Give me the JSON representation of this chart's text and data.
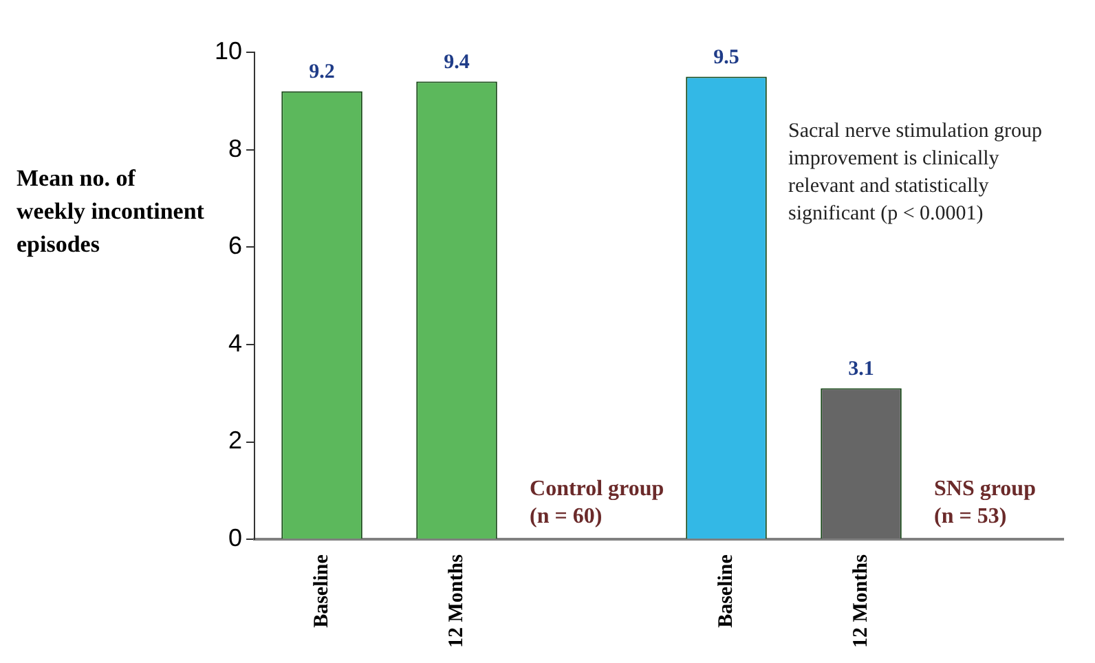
{
  "chart_data": {
    "type": "bar",
    "ylabel": "Mean no. of weekly incontinent episodes",
    "categories": [
      "Baseline",
      "12 Months",
      null,
      "Baseline",
      "12 Months",
      null
    ],
    "values": [
      9.2,
      9.4,
      null,
      9.5,
      3.1,
      null
    ],
    "colors": [
      "#5cb85c",
      "#5cb85c",
      null,
      "#33b8e6",
      "#666666",
      null
    ],
    "data_labels": true,
    "ylim": [
      0,
      10
    ],
    "yticks": [
      0,
      2,
      4,
      6,
      8,
      10
    ],
    "annotations": [
      "Control group (n = 60)",
      "SNS group (n = 53)",
      "Sacral nerve stimulation group improvement is clinically relevant and statistically significant (p < 0.0001)"
    ]
  }
}
